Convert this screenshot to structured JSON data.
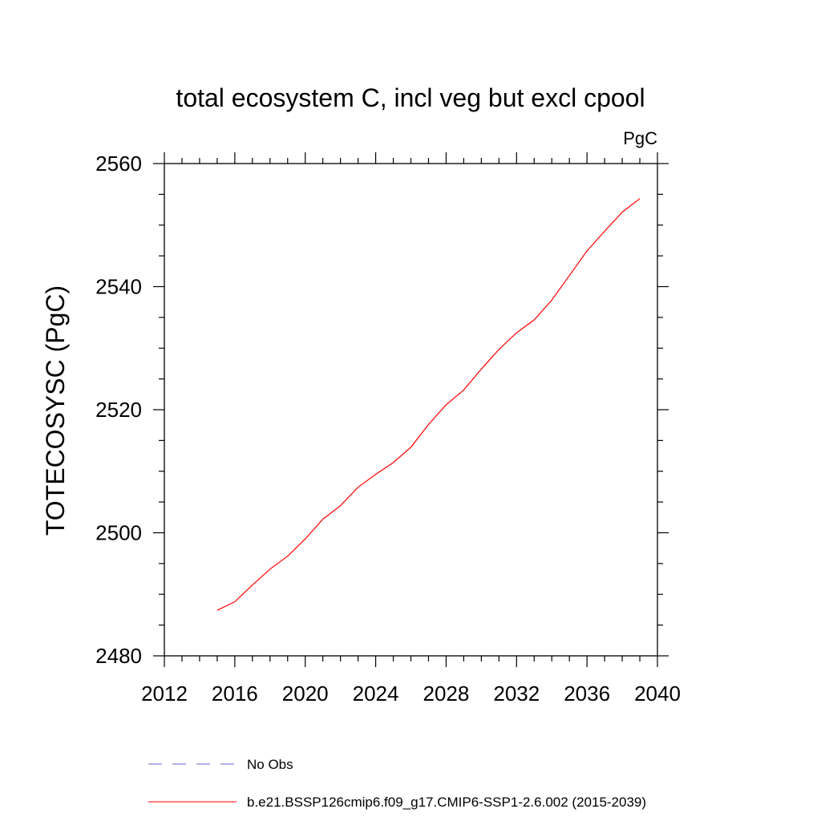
{
  "chart_data": {
    "type": "line",
    "title": "total ecosystem C, incl veg but excl cpool",
    "units": "PgC",
    "xlabel": "",
    "ylabel": "TOTECOSYSC  (PgC)",
    "xlim": [
      2012,
      2040
    ],
    "ylim": [
      2480,
      2560
    ],
    "xticks": [
      2012,
      2016,
      2020,
      2024,
      2028,
      2032,
      2036,
      2040
    ],
    "yticks": [
      2480,
      2500,
      2520,
      2540,
      2560
    ],
    "x_minor_step": 1,
    "y_minor_step": 5,
    "grid": false,
    "legend_position": "bottom",
    "series": [
      {
        "name": "b.e21.BSSP126cmip6.f09_g17.CMIP6-SSP1-2.6.002 (2015-2039)",
        "color": "#ff0000",
        "dash": "solid",
        "x": [
          2015,
          2016,
          2017,
          2018,
          2019,
          2020,
          2021,
          2022,
          2023,
          2024,
          2025,
          2026,
          2027,
          2028,
          2029,
          2030,
          2031,
          2032,
          2033,
          2034,
          2035,
          2036,
          2037,
          2038,
          2039
        ],
        "values": [
          2487.4,
          2488.8,
          2491.5,
          2494.1,
          2496.2,
          2499.0,
          2502.2,
          2504.4,
          2507.4,
          2509.5,
          2511.4,
          2513.9,
          2517.6,
          2520.8,
          2523.2,
          2526.6,
          2529.8,
          2532.5,
          2534.6,
          2537.8,
          2541.8,
          2545.8,
          2549.0,
          2552.1,
          2554.3
        ]
      }
    ],
    "legend": [
      {
        "label": "No Obs",
        "color": "#6666cc",
        "dash": "dashed"
      },
      {
        "label": "b.e21.BSSP126cmip6.f09_g17.CMIP6-SSP1-2.6.002 (2015-2039)",
        "color": "#ff0000",
        "dash": "solid"
      }
    ]
  }
}
